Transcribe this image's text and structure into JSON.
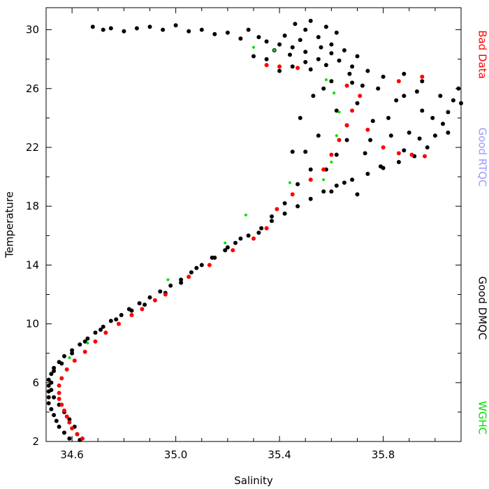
{
  "chart_data": {
    "type": "scatter",
    "title": "",
    "xlabel": "Salinity",
    "ylabel": "Temperature",
    "xlim": [
      34.5,
      36.1
    ],
    "ylim": [
      2,
      31.5
    ],
    "xticks": [
      34.6,
      35.0,
      35.4,
      35.8
    ],
    "xtick_labels": [
      "34.6",
      "35.0",
      "35.4",
      "35.8"
    ],
    "yticks": [
      2,
      6,
      10,
      14,
      18,
      22,
      26,
      30
    ],
    "ytick_labels": [
      "2",
      "6",
      "10",
      "14",
      "18",
      "22",
      "26",
      "30"
    ],
    "grid": false,
    "legend_position": "right (vertical text)",
    "series": [
      {
        "name": "Good DMQC",
        "color": "#000000",
        "points": [
          [
            34.59,
            2.2
          ],
          [
            34.57,
            2.6
          ],
          [
            34.55,
            3.0
          ],
          [
            34.54,
            3.4
          ],
          [
            34.53,
            3.8
          ],
          [
            34.52,
            4.2
          ],
          [
            34.51,
            4.6
          ],
          [
            34.51,
            5.0
          ],
          [
            34.51,
            5.4
          ],
          [
            34.51,
            5.8
          ],
          [
            34.51,
            6.2
          ],
          [
            34.52,
            6.6
          ],
          [
            34.53,
            7.0
          ],
          [
            34.55,
            7.4
          ],
          [
            34.57,
            7.8
          ],
          [
            34.6,
            8.2
          ],
          [
            34.63,
            8.6
          ],
          [
            34.66,
            9.0
          ],
          [
            34.69,
            9.4
          ],
          [
            34.72,
            9.8
          ],
          [
            34.75,
            10.2
          ],
          [
            34.79,
            10.6
          ],
          [
            34.82,
            11.0
          ],
          [
            34.86,
            11.4
          ],
          [
            34.9,
            11.8
          ],
          [
            34.94,
            12.2
          ],
          [
            34.98,
            12.6
          ],
          [
            35.02,
            13.0
          ],
          [
            35.06,
            13.5
          ],
          [
            35.1,
            14.0
          ],
          [
            35.14,
            14.5
          ],
          [
            35.19,
            15.0
          ],
          [
            35.23,
            15.5
          ],
          [
            35.28,
            16.0
          ],
          [
            35.33,
            16.5
          ],
          [
            35.37,
            17.0
          ],
          [
            35.42,
            17.5
          ],
          [
            35.47,
            18.0
          ],
          [
            35.52,
            18.5
          ],
          [
            35.57,
            19.0
          ],
          [
            35.62,
            19.4
          ],
          [
            35.68,
            19.8
          ],
          [
            35.74,
            20.2
          ],
          [
            35.8,
            20.6
          ],
          [
            35.86,
            21.0
          ],
          [
            35.92,
            21.4
          ],
          [
            35.97,
            22.0
          ],
          [
            36.0,
            22.8
          ],
          [
            36.03,
            23.6
          ],
          [
            36.05,
            24.4
          ],
          [
            36.07,
            25.2
          ],
          [
            36.09,
            26.0
          ],
          [
            36.1,
            25.0
          ],
          [
            36.05,
            23.0
          ],
          [
            35.95,
            24.5
          ],
          [
            35.9,
            23.0
          ],
          [
            35.88,
            25.5
          ],
          [
            35.82,
            24.0
          ],
          [
            35.78,
            26.0
          ],
          [
            35.75,
            22.5
          ],
          [
            35.7,
            25.0
          ],
          [
            35.66,
            23.5
          ],
          [
            35.62,
            21.5
          ],
          [
            35.58,
            20.5
          ],
          [
            35.55,
            22.8
          ],
          [
            35.5,
            21.7
          ],
          [
            35.48,
            24.0
          ],
          [
            35.53,
            25.5
          ],
          [
            35.6,
            26.5
          ],
          [
            35.67,
            27.0
          ],
          [
            35.72,
            26.2
          ],
          [
            35.8,
            26.8
          ],
          [
            35.88,
            27.0
          ],
          [
            35.95,
            26.5
          ],
          [
            36.02,
            25.5
          ],
          [
            35.4,
            27.2
          ],
          [
            35.45,
            27.5
          ],
          [
            35.5,
            27.8
          ],
          [
            35.55,
            28.0
          ],
          [
            35.6,
            28.4
          ],
          [
            35.65,
            28.6
          ],
          [
            35.7,
            28.2
          ],
          [
            35.5,
            28.5
          ],
          [
            35.45,
            28.8
          ],
          [
            35.4,
            29.0
          ],
          [
            35.48,
            29.3
          ],
          [
            35.55,
            29.5
          ],
          [
            35.6,
            29.0
          ],
          [
            35.35,
            28.0
          ],
          [
            35.3,
            28.2
          ],
          [
            35.38,
            28.6
          ],
          [
            35.52,
            27.3
          ],
          [
            35.58,
            27.6
          ],
          [
            35.63,
            27.9
          ],
          [
            35.42,
            29.6
          ],
          [
            35.5,
            30.0
          ],
          [
            35.46,
            30.4
          ],
          [
            35.52,
            30.6
          ],
          [
            35.35,
            29.2
          ],
          [
            35.25,
            29.4
          ],
          [
            35.15,
            29.7
          ],
          [
            35.05,
            29.9
          ],
          [
            34.95,
            30.0
          ],
          [
            34.85,
            30.1
          ],
          [
            34.75,
            30.1
          ],
          [
            34.68,
            30.2
          ],
          [
            34.72,
            30.0
          ],
          [
            34.8,
            29.9
          ],
          [
            34.9,
            30.2
          ],
          [
            35.0,
            30.3
          ],
          [
            35.1,
            30.0
          ],
          [
            35.2,
            29.8
          ],
          [
            35.28,
            30.0
          ],
          [
            35.32,
            29.5
          ],
          [
            35.44,
            28.3
          ],
          [
            35.56,
            28.8
          ],
          [
            35.68,
            27.5
          ],
          [
            35.74,
            27.2
          ],
          [
            35.62,
            29.8
          ],
          [
            35.58,
            30.2
          ],
          [
            35.45,
            21.7
          ],
          [
            35.52,
            20.5
          ],
          [
            35.6,
            19.0
          ],
          [
            35.65,
            19.6
          ],
          [
            35.7,
            18.8
          ],
          [
            35.47,
            19.5
          ],
          [
            35.42,
            18.2
          ],
          [
            35.37,
            17.3
          ],
          [
            35.32,
            16.2
          ],
          [
            35.25,
            15.8
          ],
          [
            35.2,
            15.2
          ],
          [
            35.15,
            14.5
          ],
          [
            35.08,
            13.8
          ],
          [
            35.02,
            12.8
          ],
          [
            34.96,
            12.1
          ],
          [
            34.88,
            11.3
          ],
          [
            34.83,
            10.9
          ],
          [
            34.77,
            10.3
          ],
          [
            34.71,
            9.6
          ],
          [
            34.65,
            8.8
          ],
          [
            34.6,
            8.0
          ],
          [
            34.56,
            7.3
          ],
          [
            34.53,
            6.8
          ],
          [
            34.52,
            6.0
          ],
          [
            34.52,
            5.5
          ],
          [
            34.53,
            5.0
          ],
          [
            34.55,
            4.5
          ],
          [
            34.57,
            4.0
          ],
          [
            34.59,
            3.5
          ],
          [
            34.61,
            3.0
          ],
          [
            34.62,
            2.5
          ],
          [
            34.63,
            2.1
          ],
          [
            35.62,
            24.5
          ],
          [
            35.57,
            26.0
          ],
          [
            35.68,
            26.4
          ],
          [
            35.85,
            25.2
          ],
          [
            35.93,
            25.8
          ],
          [
            35.99,
            24.0
          ],
          [
            35.83,
            22.8
          ],
          [
            35.76,
            23.8
          ],
          [
            35.88,
            21.8
          ],
          [
            35.94,
            22.6
          ],
          [
            35.73,
            21.6
          ],
          [
            35.79,
            20.7
          ],
          [
            35.66,
            22.5
          ]
        ]
      },
      {
        "name": "Bad Data",
        "color": "#ff0000",
        "points": [
          [
            34.64,
            2.2
          ],
          [
            34.62,
            2.5
          ],
          [
            34.6,
            2.9
          ],
          [
            34.59,
            3.3
          ],
          [
            34.58,
            3.7
          ],
          [
            34.57,
            4.1
          ],
          [
            34.56,
            4.5
          ],
          [
            34.55,
            4.9
          ],
          [
            34.55,
            5.3
          ],
          [
            34.55,
            5.8
          ],
          [
            34.56,
            6.3
          ],
          [
            34.58,
            6.9
          ],
          [
            34.61,
            7.5
          ],
          [
            34.65,
            8.1
          ],
          [
            34.69,
            8.8
          ],
          [
            34.73,
            9.4
          ],
          [
            34.78,
            10.0
          ],
          [
            34.83,
            10.6
          ],
          [
            34.87,
            11.0
          ],
          [
            34.92,
            11.6
          ],
          [
            34.96,
            12.0
          ],
          [
            35.05,
            13.2
          ],
          [
            35.13,
            14.0
          ],
          [
            35.22,
            15.0
          ],
          [
            35.3,
            15.8
          ],
          [
            35.35,
            16.5
          ],
          [
            35.39,
            17.8
          ],
          [
            35.45,
            18.8
          ],
          [
            35.52,
            19.8
          ],
          [
            35.57,
            20.5
          ],
          [
            35.6,
            21.5
          ],
          [
            35.63,
            22.5
          ],
          [
            35.66,
            23.5
          ],
          [
            35.68,
            24.5
          ],
          [
            35.71,
            25.5
          ],
          [
            35.74,
            23.2
          ],
          [
            35.8,
            22.0
          ],
          [
            35.86,
            21.6
          ],
          [
            35.91,
            21.5
          ],
          [
            35.96,
            21.4
          ],
          [
            35.66,
            26.2
          ],
          [
            35.35,
            27.6
          ],
          [
            35.4,
            27.5
          ],
          [
            35.47,
            27.4
          ],
          [
            35.86,
            26.5
          ],
          [
            35.95,
            26.8
          ]
        ]
      },
      {
        "name": "Good RTQC",
        "color": "#9999ff",
        "points": []
      },
      {
        "name": "WGHC",
        "color": "#00dd00",
        "points": [
          [
            35.3,
            28.8
          ],
          [
            35.38,
            28.6
          ],
          [
            35.58,
            26.6
          ],
          [
            35.61,
            25.7
          ],
          [
            35.63,
            24.4
          ],
          [
            35.62,
            22.8
          ],
          [
            35.6,
            21.0
          ],
          [
            35.57,
            19.8
          ],
          [
            35.44,
            19.6
          ],
          [
            35.27,
            17.4
          ],
          [
            35.19,
            15.5
          ],
          [
            34.97,
            13.0
          ],
          [
            34.66,
            8.7
          ],
          [
            34.59,
            7.7
          ]
        ]
      }
    ]
  }
}
